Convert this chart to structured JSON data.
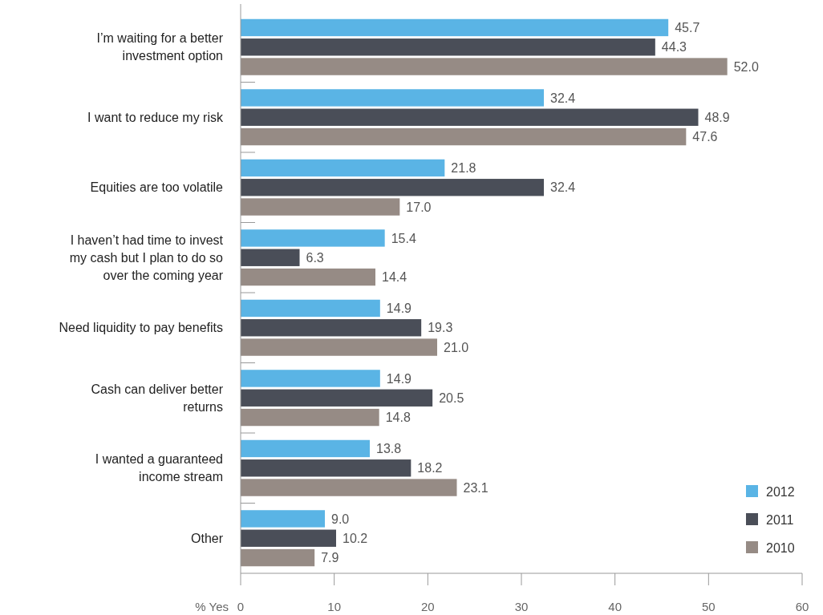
{
  "chart_data": {
    "type": "bar",
    "orientation": "horizontal",
    "xlabel": "% Yes",
    "categories": [
      "I’m waiting for a better investment option",
      "I want to reduce my risk",
      "Equities are too volatile",
      "I haven’t had time to invest my cash but I plan to do so over the coming year",
      "Need liquidity to pay benefits",
      "Cash can deliver better returns",
      "I wanted a guaranteed income stream",
      "Other"
    ],
    "series": [
      {
        "name": "2012",
        "color": "#5ab4e5",
        "values": [
          45.7,
          32.4,
          21.8,
          15.4,
          14.9,
          14.9,
          13.8,
          9.0
        ],
        "value_labels": [
          "45.7",
          "32.4",
          "21.8",
          "15.4",
          "14.9",
          "14.9",
          "13.8",
          "9.0"
        ]
      },
      {
        "name": "2011",
        "color": "#4a4e58",
        "values": [
          44.3,
          48.9,
          32.4,
          6.3,
          19.3,
          20.5,
          18.2,
          10.2
        ],
        "value_labels": [
          "44.3",
          "48.9",
          "32.4",
          "6.3",
          "19.3",
          "20.5",
          "18.2",
          "10.2"
        ]
      },
      {
        "name": "2010",
        "color": "#968b85",
        "values": [
          52.0,
          47.6,
          17.0,
          14.4,
          21.0,
          14.8,
          23.1,
          7.9
        ],
        "value_labels": [
          "52.0",
          "47.6",
          "17.0",
          "14.4",
          "21.0",
          "14.8",
          "23.1",
          "7.9"
        ]
      }
    ],
    "xlim": [
      0,
      60
    ],
    "xticks": [
      0,
      10,
      20,
      30,
      40,
      50,
      60
    ],
    "grid": false,
    "legend": "bottom right"
  }
}
